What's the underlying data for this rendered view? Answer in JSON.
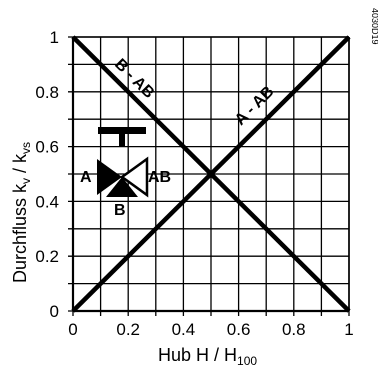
{
  "chart_data": {
    "type": "line",
    "xlabel": "Hub H / H",
    "xlabel_sub": "100",
    "ylabel_main": "Durchfluss k",
    "ylabel_sub1": "v",
    "ylabel_mid": " / k",
    "ylabel_sub2": "vs",
    "xlim": [
      0,
      1
    ],
    "ylim": [
      0,
      1
    ],
    "x_ticks": [
      0,
      0.2,
      0.4,
      0.6,
      0.8,
      1
    ],
    "x_tick_labels": [
      "0",
      "0.2",
      "0.4",
      "0.6",
      "0.8",
      "1"
    ],
    "y_ticks": [
      0,
      0.2,
      0.4,
      0.6,
      0.8,
      1
    ],
    "y_tick_labels": [
      "0",
      "0.2",
      "0.4",
      "0.6",
      "0.8",
      "1"
    ],
    "grid": true,
    "grid_step": 0.1,
    "series": [
      {
        "name": "A - AB",
        "x": [
          0,
          1
        ],
        "y": [
          0,
          1
        ]
      },
      {
        "name": "B - AB",
        "x": [
          0,
          1
        ],
        "y": [
          1,
          0
        ]
      }
    ],
    "valve_labels": {
      "a": "A",
      "ab": "AB",
      "b": "B"
    },
    "figure_code": "4030D19"
  }
}
